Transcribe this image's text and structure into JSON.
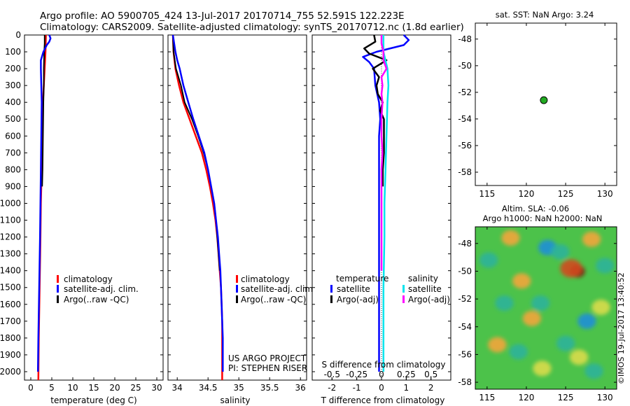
{
  "title": {
    "line1": "Argo profile: AO 5900705_424 13-Jul-2017 20170714_755 52.591S 122.223E",
    "line2": "Climatology: CARS2009. Satellite-adjusted climatology: synTS_20170712.nc (1.8d earlier)"
  },
  "colors": {
    "climatology": "#ff0000",
    "satellite": "#0000ff",
    "argo": "#000000",
    "sat_salinity": "#00e5ee",
    "argo_salinity": "#ff00ff",
    "float_marker": "#22aa22"
  },
  "depth_axis": {
    "range": [
      0,
      2050
    ],
    "ticks": [
      "0",
      "100",
      "200",
      "300",
      "400",
      "500",
      "600",
      "700",
      "800",
      "900",
      "1000",
      "1100",
      "1200",
      "1300",
      "1400",
      "1500",
      "1600",
      "1700",
      "1800",
      "1900",
      "2000"
    ]
  },
  "legend_profile": {
    "climatology": "climatology",
    "satellite": "satellite-adj. clim.",
    "argo": "Argo(..raw -QC)"
  },
  "credits": {
    "line1": "US ARGO PROJECT",
    "line2": "PI: STEPHEN RISER"
  },
  "legend_diff": {
    "temp_header": "temperature",
    "sal_header": "salinity",
    "satellite": "satellite",
    "argo": "Argo(-adj)",
    "s_axis_title": "S difference from climatology",
    "s_ticks": [
      "-0.5",
      "-0.25",
      "0",
      "0.25",
      "0.5"
    ]
  },
  "map_top": {
    "title": "sat. SST: NaN Argo: 3.24",
    "x_ticks": [
      "115",
      "120",
      "125",
      "130"
    ],
    "y_ticks": [
      "-48",
      "-50",
      "-52",
      "-54",
      "-56",
      "-58"
    ],
    "float_lon": 122.223,
    "float_lat": -52.591
  },
  "map_bottom": {
    "title1": "Altim. SLA: -0.06",
    "title2": "Argo h1000: NaN h2000: NaN",
    "x_ticks": [
      "115",
      "120",
      "125",
      "130"
    ],
    "y_ticks": [
      "-48",
      "-50",
      "-52",
      "-54",
      "-56",
      "-58"
    ]
  },
  "watermark": "©IMOS 19-Jul-2017 13:40:52",
  "chart_data": [
    {
      "type": "line",
      "name": "temperature",
      "xlabel": "temperature (deg C)",
      "xlim": [
        -1.5,
        31.5
      ],
      "ylim": [
        0,
        2050
      ],
      "x_ticks": [
        "0",
        "5",
        "10",
        "15",
        "20",
        "25",
        "30"
      ],
      "series": [
        {
          "name": "climatology",
          "depth": [
            0,
            100,
            200,
            300,
            400,
            600,
            800,
            1000,
            1200,
            1500,
            1800,
            2050
          ],
          "values": [
            3.6,
            3.5,
            3.3,
            3.1,
            2.9,
            2.7,
            2.6,
            2.4,
            2.3,
            2.1,
            1.9,
            1.8
          ]
        },
        {
          "name": "satellite-adj. clim.",
          "depth": [
            0,
            20,
            40,
            60,
            100,
            150,
            200,
            300,
            400,
            600,
            800,
            1000,
            1200,
            1500,
            1800,
            2000
          ],
          "values": [
            4.4,
            4.7,
            4.4,
            3.8,
            3.0,
            2.4,
            2.4,
            2.5,
            2.6,
            2.5,
            2.4,
            2.3,
            2.2,
            2.0,
            1.8,
            1.7
          ]
        },
        {
          "name": "Argo(..raw -QC)",
          "depth": [
            0,
            50,
            100,
            200,
            300,
            400,
            600,
            800,
            900
          ],
          "values": [
            3.3,
            3.3,
            3.2,
            3.1,
            3.1,
            3.0,
            2.9,
            2.8,
            2.7
          ]
        }
      ]
    },
    {
      "type": "line",
      "name": "salinity",
      "xlabel": "salinity",
      "xlim": [
        33.85,
        36.1
      ],
      "ylim": [
        0,
        2050
      ],
      "x_ticks": [
        "34",
        "34.5",
        "35",
        "35.5",
        "36"
      ],
      "series": [
        {
          "name": "climatology",
          "depth": [
            0,
            100,
            200,
            300,
            400,
            500,
            600,
            700,
            800,
            900,
            1000,
            1100,
            1200,
            1300,
            1400,
            1500,
            1600,
            1700,
            1800,
            1900,
            2050
          ],
          "values": [
            33.93,
            33.94,
            33.97,
            34.03,
            34.1,
            34.2,
            34.3,
            34.4,
            34.47,
            34.53,
            34.58,
            34.62,
            34.65,
            34.67,
            34.69,
            34.71,
            34.72,
            34.73,
            34.73,
            34.73,
            34.73
          ]
        },
        {
          "name": "satellite-adj. clim.",
          "depth": [
            0,
            50,
            100,
            150,
            200,
            300,
            400,
            500,
            600,
            700,
            800,
            900,
            1000,
            1100,
            1200,
            1300,
            1400,
            1500,
            1600,
            1700,
            1800,
            1900,
            2000
          ],
          "values": [
            33.93,
            33.95,
            33.97,
            34.0,
            34.04,
            34.1,
            34.18,
            34.26,
            34.35,
            34.44,
            34.5,
            34.55,
            34.6,
            34.63,
            34.66,
            34.68,
            34.7,
            34.71,
            34.72,
            34.73,
            34.74,
            34.74,
            34.74
          ]
        },
        {
          "name": "Argo(..raw -QC)",
          "depth": [
            0,
            100,
            200,
            300,
            400,
            500,
            600,
            700,
            800,
            900,
            1000,
            1100,
            1200,
            1300,
            1400
          ],
          "values": [
            33.93,
            33.94,
            33.98,
            34.06,
            34.12,
            34.24,
            34.34,
            34.43,
            34.5,
            34.55,
            34.6,
            34.63,
            34.65,
            34.67,
            34.69
          ]
        }
      ]
    },
    {
      "type": "line",
      "name": "difference from climatology",
      "xlabel": "T difference from climatology",
      "xlim": [
        -2.8,
        2.8
      ],
      "s_xlim": [
        -0.7,
        0.7
      ],
      "ylim": [
        0,
        2050
      ],
      "x_ticks": [
        "-2",
        "-1",
        "0",
        "1",
        "2"
      ],
      "series": [
        {
          "name": "T satellite",
          "axis": "T",
          "depth": [
            0,
            30,
            60,
            100,
            130,
            160,
            200,
            300,
            400,
            500,
            600,
            800,
            1000,
            1200,
            1500,
            2000
          ],
          "values": [
            0.9,
            1.1,
            0.9,
            -0.2,
            -0.75,
            -0.5,
            -0.3,
            -0.25,
            -0.1,
            -0.05,
            -0.1,
            -0.1,
            -0.1,
            -0.1,
            -0.1,
            -0.1
          ]
        },
        {
          "name": "T Argo(-adj)",
          "axis": "T",
          "depth": [
            0,
            40,
            80,
            110,
            150,
            200,
            250,
            300,
            350,
            400,
            450,
            500,
            600,
            700,
            800,
            900
          ],
          "values": [
            -0.3,
            -0.25,
            -0.7,
            -0.5,
            0.2,
            -0.35,
            -0.1,
            -0.2,
            -0.15,
            0.05,
            -0.05,
            0.1,
            0.1,
            0.1,
            0.05,
            0.05
          ]
        },
        {
          "name": "S satellite",
          "axis": "S",
          "depth": [
            0,
            100,
            200,
            300,
            400,
            600,
            800,
            1000,
            1200,
            1500,
            1800,
            2000
          ],
          "values": [
            0.02,
            0.02,
            0.06,
            0.07,
            0.06,
            0.05,
            0.04,
            0.03,
            0.03,
            0.02,
            0.02,
            0.02
          ]
        },
        {
          "name": "S Argo(-adj)",
          "axis": "S",
          "depth": [
            0,
            50,
            100,
            150,
            200,
            250,
            300,
            350,
            400,
            500,
            600,
            700,
            800,
            900,
            1000,
            1200,
            1400
          ],
          "values": [
            0.0,
            0.0,
            0.02,
            0.02,
            0.05,
            0.0,
            0.01,
            0.0,
            0.01,
            0.0,
            0.0,
            0.01,
            0.0,
            0.0,
            0.0,
            0.0,
            0.0
          ]
        }
      ]
    },
    {
      "type": "scatter",
      "name": "float location (sat. SST map)",
      "xlim": [
        113.5,
        131.5
      ],
      "ylim": [
        -59,
        -46.8
      ],
      "x": [
        122.223
      ],
      "y": [
        -52.591
      ]
    },
    {
      "type": "heatmap",
      "name": "Altim. SLA map",
      "xlim": [
        113.5,
        131.5
      ],
      "ylim": [
        -58.5,
        -46.8
      ],
      "blobs": [
        {
          "lon": 126.5,
          "lat": -50.0,
          "value": 1.0
        },
        {
          "lon": 125.7,
          "lat": -49.8,
          "value": 0.8
        },
        {
          "lon": 118.0,
          "lat": -47.6,
          "value": 0.55
        },
        {
          "lon": 119.4,
          "lat": -50.7,
          "value": 0.55
        },
        {
          "lon": 116.3,
          "lat": -55.3,
          "value": 0.55
        },
        {
          "lon": 120.7,
          "lat": -53.4,
          "value": 0.5
        },
        {
          "lon": 128.3,
          "lat": -47.7,
          "value": 0.5
        },
        {
          "lon": 126.7,
          "lat": -56.2,
          "value": 0.45
        },
        {
          "lon": 122.0,
          "lat": -57.0,
          "value": 0.45
        },
        {
          "lon": 129.5,
          "lat": -52.6,
          "value": 0.4
        },
        {
          "lon": 122.7,
          "lat": -48.3,
          "value": -0.45
        },
        {
          "lon": 124.3,
          "lat": -48.6,
          "value": -0.4
        },
        {
          "lon": 117.2,
          "lat": -52.3,
          "value": -0.4
        },
        {
          "lon": 121.8,
          "lat": -52.3,
          "value": -0.4
        },
        {
          "lon": 127.7,
          "lat": -53.6,
          "value": -0.45
        },
        {
          "lon": 125.0,
          "lat": -55.2,
          "value": -0.4
        },
        {
          "lon": 119.0,
          "lat": -55.8,
          "value": -0.4
        },
        {
          "lon": 130.0,
          "lat": -49.6,
          "value": -0.35
        },
        {
          "lon": 115.2,
          "lat": -49.2,
          "value": -0.35
        },
        {
          "lon": 128.6,
          "lat": -57.2,
          "value": -0.35
        }
      ]
    }
  ]
}
